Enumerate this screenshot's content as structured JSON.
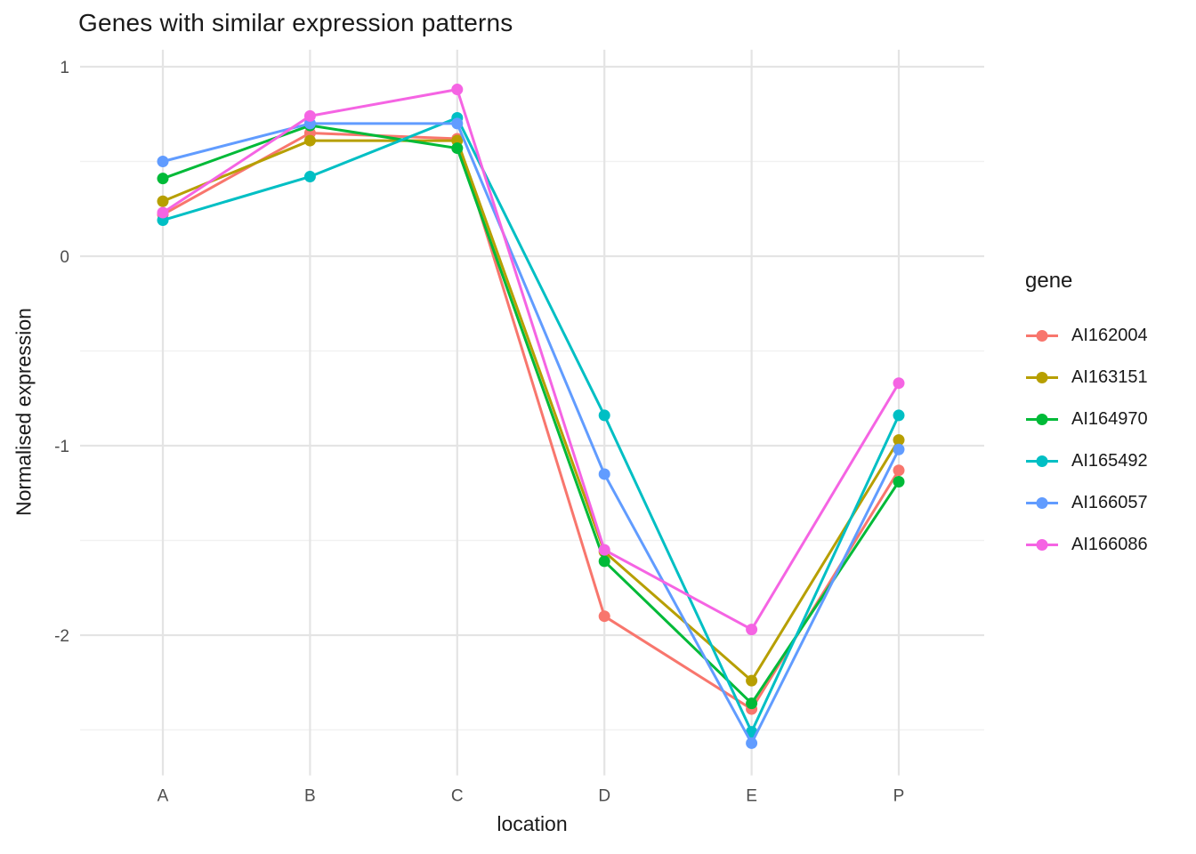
{
  "chart_data": {
    "type": "line",
    "title": "Genes with similar expression patterns",
    "xlabel": "location",
    "ylabel": "Normalised expression",
    "legend_title": "gene",
    "legend_position": "right",
    "categories": [
      "A",
      "B",
      "C",
      "D",
      "E",
      "P"
    ],
    "y_ticks": [
      {
        "label": "1",
        "value": 1
      },
      {
        "label": "0",
        "value": 0
      },
      {
        "label": "-1",
        "value": -1
      },
      {
        "label": "-2",
        "value": -2
      }
    ],
    "y_minor_ticks": [
      0.5,
      -0.5,
      -1.5,
      -2.5
    ],
    "ylim": [
      -2.74,
      1.09
    ],
    "grid": "major+minor",
    "series": [
      {
        "name": "AI162004",
        "color": "#F8766D",
        "values": [
          0.22,
          0.65,
          0.62,
          -1.9,
          -2.39,
          -1.13
        ]
      },
      {
        "name": "AI163151",
        "color": "#B79F00",
        "values": [
          0.29,
          0.61,
          0.61,
          -1.56,
          -2.24,
          -0.97
        ]
      },
      {
        "name": "AI164970",
        "color": "#00BA38",
        "values": [
          0.41,
          0.69,
          0.57,
          -1.61,
          -2.36,
          -1.19
        ]
      },
      {
        "name": "AI165492",
        "color": "#00BFC4",
        "values": [
          0.19,
          0.42,
          0.73,
          -0.84,
          -2.51,
          -0.84
        ]
      },
      {
        "name": "AI166057",
        "color": "#619CFF",
        "values": [
          0.5,
          0.7,
          0.7,
          -1.15,
          -2.57,
          -1.02
        ]
      },
      {
        "name": "AI166086",
        "color": "#F564E3",
        "values": [
          0.23,
          0.74,
          0.88,
          -1.55,
          -1.97,
          -0.67
        ]
      }
    ],
    "styles": {
      "background": "#FFFFFF",
      "grid_major_color": "#E4E4E4",
      "grid_minor_color": "#F1F1F1",
      "tick_label_color": "#4D4D4D",
      "text_color": "#1A1A1A",
      "line_width": 3,
      "point_radius": 6.5
    }
  }
}
